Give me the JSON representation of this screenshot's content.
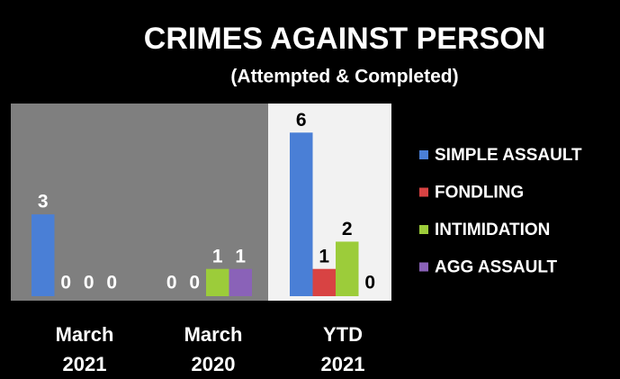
{
  "chart_data": {
    "type": "bar",
    "title": "CRIMES AGAINST PERSON",
    "subtitle": "(Attempted & Completed)",
    "categories": [
      "March 2021",
      "March 2020",
      "YTD 2021"
    ],
    "series": [
      {
        "name": "SIMPLE ASSAULT",
        "color": "#4a7fd6",
        "values": [
          3,
          0,
          6
        ]
      },
      {
        "name": "FONDLING",
        "color": "#d84343",
        "values": [
          0,
          0,
          1
        ]
      },
      {
        "name": "INTIMIDATION",
        "color": "#9ccc3a",
        "values": [
          0,
          1,
          2
        ]
      },
      {
        "name": "AGG ASSAULT",
        "color": "#8a62b8",
        "values": [
          0,
          1,
          0
        ]
      }
    ],
    "ylim": [
      0,
      7
    ],
    "legend": "right"
  }
}
